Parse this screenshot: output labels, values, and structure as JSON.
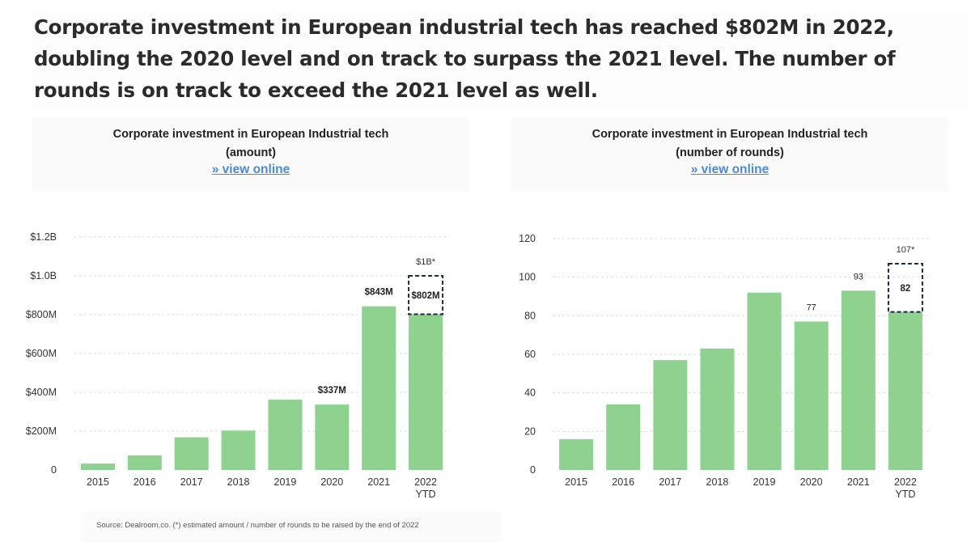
{
  "headline": "Corporate investment in European industrial tech has reached $802M in 2022, doubling the 2020 level and on track to surpass the 2021 level. The number of rounds is on track to exceed the 2021 level as well.",
  "source": "Source: Dealroom.co.  (*) estimated amount / number of rounds to be raised by the end of 2022",
  "colors": {
    "bar": "#8fd18f",
    "grid": "#dddddd",
    "link": "#4a8ad8",
    "dashed": "#1f2a44"
  },
  "chart_data": [
    {
      "type": "bar",
      "title": "Corporate investment in European Industrial tech",
      "subtitle": "(amount)",
      "link_text": "» view online",
      "categories": [
        "2015",
        "2016",
        "2017",
        "2018",
        "2019",
        "2020",
        "2021",
        "2022\nYTD"
      ],
      "values": [
        33,
        75,
        168,
        203,
        362,
        337,
        843,
        802
      ],
      "value_unit": "$M",
      "ylim": [
        0,
        1200
      ],
      "yticks": [
        0,
        200,
        400,
        600,
        800,
        1000,
        1200
      ],
      "ytick_labels": [
        "0",
        "$200M",
        "$400M",
        "$600M",
        "$800M",
        "$1.0B",
        "$1.2B"
      ],
      "data_labels": [
        {
          "index": 5,
          "text": "$337M",
          "bold": true
        },
        {
          "index": 6,
          "text": "$843M",
          "bold": true
        },
        {
          "index": 7,
          "text": "$802M",
          "bold": true,
          "inside": true
        }
      ],
      "estimate": {
        "index": 7,
        "value": 1000,
        "label": "$1B*"
      },
      "grid": true
    },
    {
      "type": "bar",
      "title": "Corporate investment in European Industrial tech",
      "subtitle": "(number of rounds)",
      "link_text": "» view online",
      "categories": [
        "2015",
        "2016",
        "2017",
        "2018",
        "2019",
        "2020",
        "2021",
        "2022\nYTD"
      ],
      "values": [
        16,
        34,
        57,
        63,
        92,
        77,
        93,
        82
      ],
      "ylim": [
        0,
        120
      ],
      "yticks": [
        0,
        20,
        40,
        60,
        80,
        100,
        120
      ],
      "ytick_labels": [
        "0",
        "20",
        "40",
        "60",
        "80",
        "100",
        "120"
      ],
      "data_labels": [
        {
          "index": 5,
          "text": "77",
          "bold": false
        },
        {
          "index": 6,
          "text": "93",
          "bold": false
        },
        {
          "index": 7,
          "text": "82",
          "bold": true,
          "inside": true
        }
      ],
      "estimate": {
        "index": 7,
        "value": 107,
        "label": "107*"
      },
      "grid": true
    }
  ]
}
